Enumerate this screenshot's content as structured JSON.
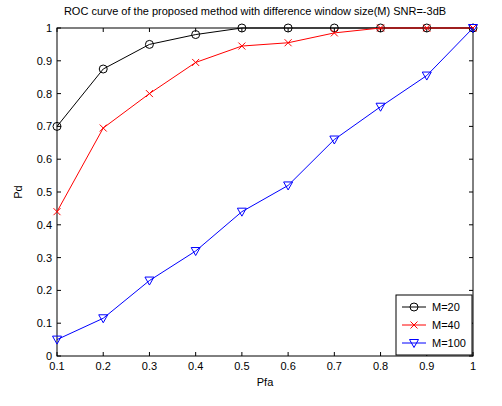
{
  "chart_data": {
    "type": "line",
    "title": "ROC curve of the proposed method with difference window size(M) SNR=-3dB",
    "x_label": "Pfa",
    "y_label": "Pd",
    "x": [
      0.1,
      0.2,
      0.3,
      0.4,
      0.5,
      0.6,
      0.7,
      0.8,
      0.9,
      1
    ],
    "series": [
      {
        "name": "M=20",
        "color": "#000000",
        "marker": "circle",
        "line_style": "solid",
        "values": [
          0.7,
          0.875,
          0.95,
          0.98,
          1,
          1,
          1,
          1,
          1,
          1
        ]
      },
      {
        "name": "M=40",
        "color": "#ff0000",
        "marker": "x",
        "line_style": "solid",
        "values": [
          0.44,
          0.695,
          0.8,
          0.895,
          0.945,
          0.955,
          0.985,
          1,
          1,
          1
        ]
      },
      {
        "name": "M=100",
        "color": "#0000ff",
        "marker": "triangle-down",
        "line_style": "solid",
        "values": [
          0.05,
          0.115,
          0.23,
          0.32,
          0.44,
          0.52,
          0.66,
          0.76,
          0.855,
          1
        ]
      }
    ],
    "xlim": [
      0.1,
      1
    ],
    "xticks": [
      0.1,
      0.2,
      0.3,
      0.4,
      0.5,
      0.6,
      0.7,
      0.8,
      0.9,
      1
    ],
    "ylim": [
      0,
      1
    ],
    "yticks": [
      0,
      0.1,
      0.2,
      0.3,
      0.4,
      0.5,
      0.6,
      0.7,
      0.8,
      0.9,
      1
    ],
    "grid": false,
    "legend": "lower right"
  }
}
